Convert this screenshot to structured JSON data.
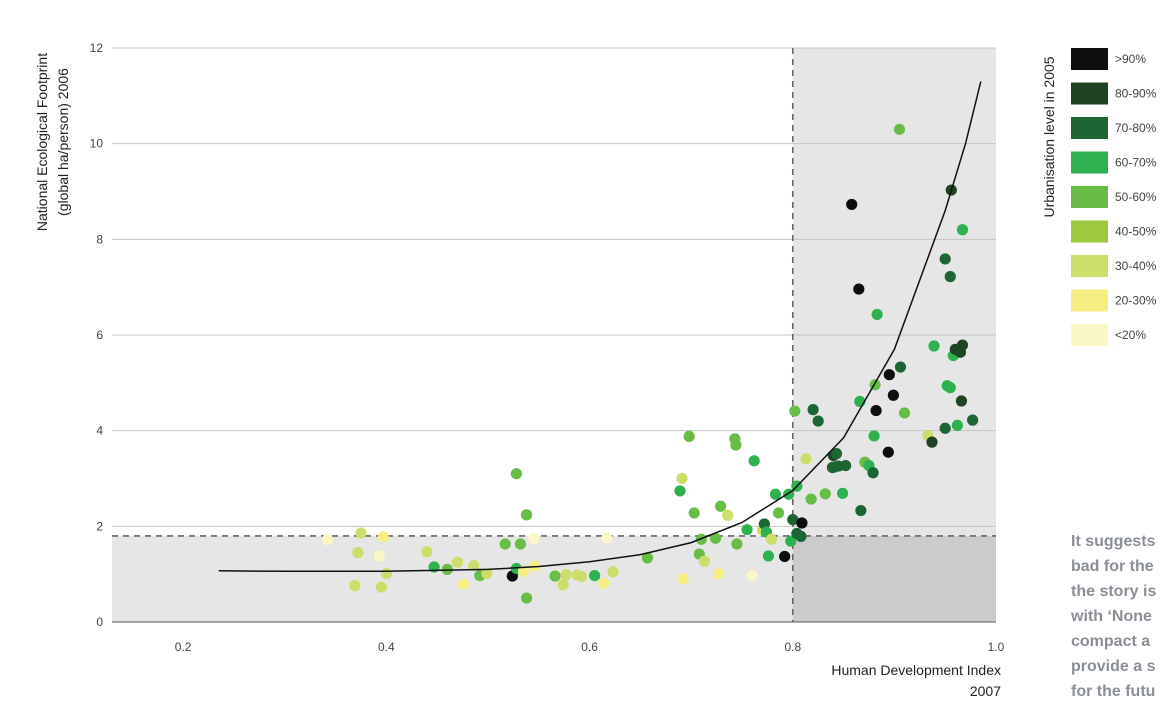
{
  "chart_data": {
    "type": "scatter",
    "xlabel": "Human Development Index",
    "xlabel_line2": "2007",
    "ylabel": "National Ecological Footprint",
    "ylabel_line2": "(global ha/person) 2006",
    "xlim": [
      0.13,
      1.0
    ],
    "ylim": [
      0,
      12
    ],
    "x_ticks": [
      "0.2",
      "0.4",
      "0.6",
      "0.8",
      "1.0"
    ],
    "y_ticks": [
      "0",
      "2",
      "4",
      "6",
      "8",
      "10",
      "12"
    ],
    "grid": "horizontal",
    "thresholds": {
      "hdi": 0.8,
      "footprint": 1.8
    },
    "legend": {
      "title": "Urbanisation level in 2005",
      "placement": "right",
      "entries": [
        {
          "key": "k90",
          "label": ">90%",
          "color": "#0e0e0e"
        },
        {
          "key": "k80",
          "label": "80-90%",
          "color": "#1e4423"
        },
        {
          "key": "k70",
          "label": "70-80%",
          "color": "#1b6633"
        },
        {
          "key": "k60",
          "label": "60-70%",
          "color": "#2eb24f"
        },
        {
          "key": "k50",
          "label": "50-60%",
          "color": "#67bd45"
        },
        {
          "key": "k40",
          "label": "40-50%",
          "color": "#9cca3c"
        },
        {
          "key": "k30",
          "label": "30-40%",
          "color": "#cddd6a"
        },
        {
          "key": "k20",
          "label": "20-30%",
          "color": "#f6ee81"
        },
        {
          "key": "k0",
          "label": "<20%",
          "color": "#faf6c5"
        }
      ]
    },
    "trend_line": [
      [
        0.235,
        1.07
      ],
      [
        0.3,
        1.06
      ],
      [
        0.4,
        1.06
      ],
      [
        0.5,
        1.1
      ],
      [
        0.55,
        1.16
      ],
      [
        0.6,
        1.26
      ],
      [
        0.65,
        1.41
      ],
      [
        0.7,
        1.66
      ],
      [
        0.75,
        2.08
      ],
      [
        0.8,
        2.75
      ],
      [
        0.85,
        3.85
      ],
      [
        0.9,
        5.7
      ],
      [
        0.95,
        8.6
      ],
      [
        0.97,
        10.0
      ],
      [
        0.985,
        11.3
      ]
    ],
    "points": [
      [
        0.342,
        1.72,
        "k0"
      ],
      [
        0.369,
        0.76,
        "k30"
      ],
      [
        0.372,
        1.45,
        "k30"
      ],
      [
        0.375,
        1.86,
        "k30"
      ],
      [
        0.393,
        1.38,
        "k0"
      ],
      [
        0.395,
        0.73,
        "k30"
      ],
      [
        0.397,
        1.78,
        "k20"
      ],
      [
        0.4,
        1.01,
        "k30"
      ],
      [
        0.44,
        1.47,
        "k30"
      ],
      [
        0.447,
        1.15,
        "k60"
      ],
      [
        0.46,
        1.1,
        "k50"
      ],
      [
        0.47,
        1.25,
        "k30"
      ],
      [
        0.476,
        0.79,
        "k20"
      ],
      [
        0.486,
        1.18,
        "k30"
      ],
      [
        0.492,
        0.97,
        "k50"
      ],
      [
        0.499,
        1.01,
        "k30"
      ],
      [
        0.517,
        1.63,
        "k50"
      ],
      [
        0.524,
        0.96,
        "k90"
      ],
      [
        0.528,
        3.1,
        "k50"
      ],
      [
        0.528,
        1.12,
        "k60"
      ],
      [
        0.532,
        1.63,
        "k50"
      ],
      [
        0.535,
        1.06,
        "k20"
      ],
      [
        0.538,
        2.24,
        "k50"
      ],
      [
        0.538,
        0.5,
        "k50"
      ],
      [
        0.546,
        1.17,
        "k20"
      ],
      [
        0.545,
        1.74,
        "k0"
      ],
      [
        0.566,
        0.96,
        "k50"
      ],
      [
        0.574,
        0.78,
        "k30"
      ],
      [
        0.577,
        0.99,
        "k30"
      ],
      [
        0.588,
        0.98,
        "k30"
      ],
      [
        0.592,
        0.95,
        "k30"
      ],
      [
        0.605,
        0.97,
        "k60"
      ],
      [
        0.614,
        0.81,
        "k20"
      ],
      [
        0.617,
        1.76,
        "k0"
      ],
      [
        0.623,
        1.05,
        "k30"
      ],
      [
        0.657,
        1.34,
        "k50"
      ],
      [
        0.689,
        2.74,
        "k60"
      ],
      [
        0.691,
        3.0,
        "k30"
      ],
      [
        0.692,
        0.9,
        "k20"
      ],
      [
        0.698,
        3.88,
        "k50"
      ],
      [
        0.703,
        2.28,
        "k50"
      ],
      [
        0.708,
        1.42,
        "k50"
      ],
      [
        0.71,
        1.73,
        "k50"
      ],
      [
        0.713,
        1.27,
        "k30"
      ],
      [
        0.724,
        1.75,
        "k50"
      ],
      [
        0.727,
        1.01,
        "k20"
      ],
      [
        0.729,
        2.42,
        "k50"
      ],
      [
        0.736,
        2.23,
        "k30"
      ],
      [
        0.743,
        3.83,
        "k50"
      ],
      [
        0.744,
        3.7,
        "k50"
      ],
      [
        0.745,
        1.63,
        "k50"
      ],
      [
        0.755,
        1.93,
        "k60"
      ],
      [
        0.76,
        0.97,
        "k0"
      ],
      [
        0.762,
        3.37,
        "k60"
      ],
      [
        0.77,
        1.92,
        "k30"
      ],
      [
        0.772,
        2.05,
        "k70"
      ],
      [
        0.774,
        1.88,
        "k60"
      ],
      [
        0.776,
        1.38,
        "k60"
      ],
      [
        0.779,
        1.73,
        "k30"
      ],
      [
        0.783,
        2.67,
        "k60"
      ],
      [
        0.786,
        2.28,
        "k50"
      ],
      [
        0.792,
        1.37,
        "k90"
      ],
      [
        0.796,
        2.67,
        "k60"
      ],
      [
        0.798,
        1.69,
        "k60"
      ],
      [
        0.8,
        2.14,
        "k70"
      ],
      [
        0.802,
        4.41,
        "k50"
      ],
      [
        0.804,
        2.84,
        "k60"
      ],
      [
        0.804,
        1.85,
        "k70"
      ],
      [
        0.808,
        1.79,
        "k70"
      ],
      [
        0.809,
        2.07,
        "k90"
      ],
      [
        0.813,
        3.41,
        "k30"
      ],
      [
        0.818,
        2.57,
        "k50"
      ],
      [
        0.82,
        4.44,
        "k70"
      ],
      [
        0.825,
        4.2,
        "k70"
      ],
      [
        0.832,
        2.68,
        "k50"
      ],
      [
        0.839,
        3.23,
        "k70"
      ],
      [
        0.84,
        3.48,
        "k80"
      ],
      [
        0.841,
        3.24,
        "k70"
      ],
      [
        0.843,
        3.52,
        "k70"
      ],
      [
        0.845,
        3.26,
        "k70"
      ],
      [
        0.849,
        2.69,
        "k60"
      ],
      [
        0.852,
        3.27,
        "k70"
      ],
      [
        0.858,
        8.73,
        "k90"
      ],
      [
        0.865,
        6.96,
        "k90"
      ],
      [
        0.866,
        4.61,
        "k60"
      ],
      [
        0.867,
        2.33,
        "k70"
      ],
      [
        0.871,
        3.34,
        "k50"
      ],
      [
        0.875,
        3.27,
        "k60"
      ],
      [
        0.879,
        3.12,
        "k70"
      ],
      [
        0.88,
        3.89,
        "k60"
      ],
      [
        0.881,
        4.96,
        "k50"
      ],
      [
        0.882,
        4.42,
        "k90"
      ],
      [
        0.883,
        6.43,
        "k60"
      ],
      [
        0.894,
        3.55,
        "k90"
      ],
      [
        0.895,
        5.17,
        "k90"
      ],
      [
        0.899,
        4.74,
        "k90"
      ],
      [
        0.905,
        10.3,
        "k50"
      ],
      [
        0.906,
        5.33,
        "k70"
      ],
      [
        0.91,
        4.37,
        "k50"
      ],
      [
        0.933,
        3.9,
        "k30"
      ],
      [
        0.937,
        3.76,
        "k80"
      ],
      [
        0.939,
        5.77,
        "k60"
      ],
      [
        0.95,
        4.05,
        "k70"
      ],
      [
        0.95,
        7.59,
        "k70"
      ],
      [
        0.952,
        4.94,
        "k60"
      ],
      [
        0.955,
        4.9,
        "k60"
      ],
      [
        0.955,
        7.22,
        "k70"
      ],
      [
        0.956,
        9.03,
        "k80"
      ],
      [
        0.958,
        5.57,
        "k60"
      ],
      [
        0.96,
        5.7,
        "k80"
      ],
      [
        0.962,
        4.11,
        "k60"
      ],
      [
        0.965,
        5.64,
        "k80"
      ],
      [
        0.966,
        4.62,
        "k80"
      ],
      [
        0.967,
        5.79,
        "k80"
      ],
      [
        0.967,
        8.2,
        "k60"
      ],
      [
        0.977,
        4.22,
        "k70"
      ]
    ]
  },
  "side_text": {
    "lines": [
      "It suggests",
      "bad for the",
      "the story is",
      "with ‘None",
      "compact a",
      "provide a s",
      "for the futu"
    ]
  }
}
